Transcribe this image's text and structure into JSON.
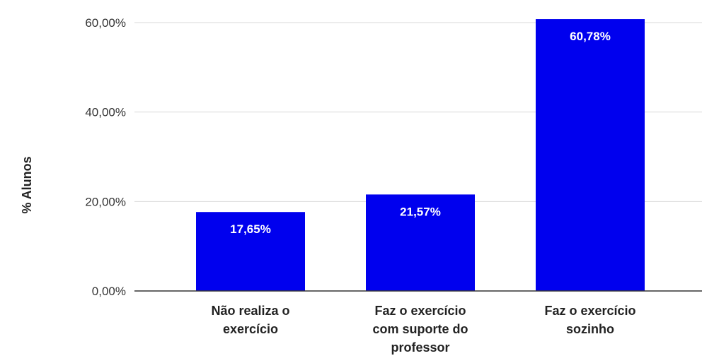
{
  "chart_data": {
    "type": "bar",
    "categories": [
      [
        "Não realiza o",
        "exercício"
      ],
      [
        "Faz o exercício",
        "com suporte do",
        "professor"
      ],
      [
        "Faz o exercício",
        "sozinho"
      ]
    ],
    "values": [
      17.65,
      21.57,
      60.78
    ],
    "data_labels": [
      "17,65%",
      "21,57%",
      "60,78%"
    ],
    "ylabel": "% Alunos",
    "ylim": [
      0,
      60
    ],
    "yticks": [
      0,
      20,
      40,
      60
    ],
    "ytick_labels": [
      "0,00%",
      "20,00%",
      "40,00%",
      "60,00%"
    ],
    "grid": true,
    "bar_color": "#0000ee",
    "grid_color": "#d9d9d9",
    "axis_color": "#333333"
  }
}
